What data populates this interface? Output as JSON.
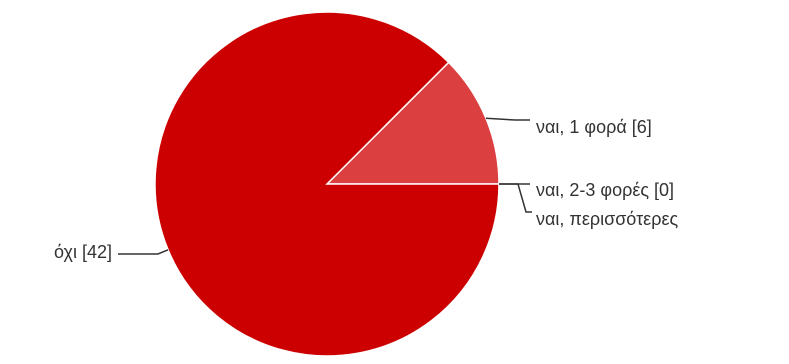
{
  "chart_data": {
    "type": "pie",
    "title": "",
    "categories": [
      "ναι, 1 φορά",
      "ναι, 2-3 φορές",
      "ναι, περισσότερες",
      "όχι"
    ],
    "values": [
      6,
      0,
      0,
      42
    ],
    "labels": [
      "ναι, 1 φορά [6]",
      "ναι, 2-3 φορές [0]",
      "ναι, περισσότερες",
      "όχι [42]"
    ],
    "colors": [
      "#dc3f3f",
      "#cc0000",
      "#cc0000",
      "#cc0000"
    ],
    "legend": "callout labels beside slices",
    "start": "3 o'clock, counter-clockwise"
  }
}
